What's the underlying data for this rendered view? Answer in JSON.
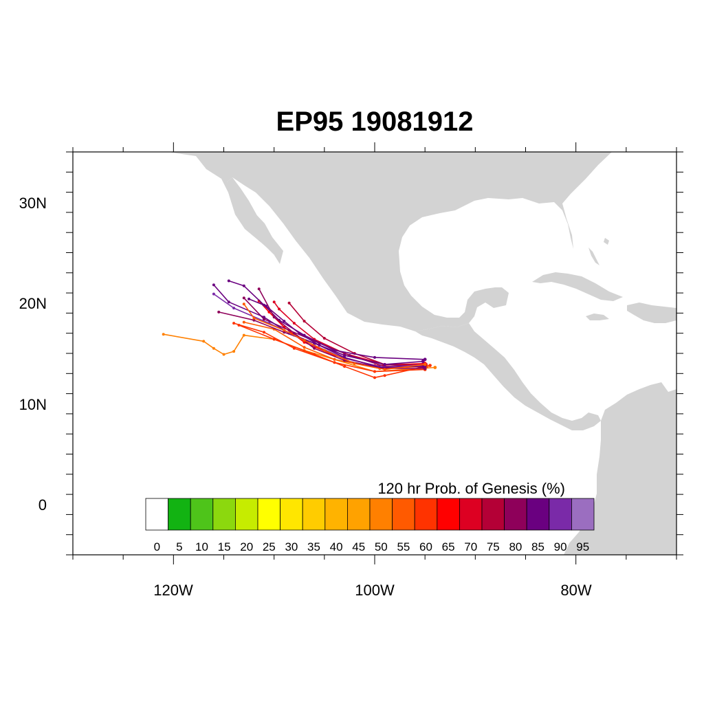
{
  "map": {
    "title": "EP95 19081912",
    "projection": "cylindrical-equidistant",
    "land_color": "#d3d3d3",
    "ocean_color": "#ffffff",
    "lon_range": [
      -130,
      -70
    ],
    "lat_range": [
      -5,
      35
    ],
    "lon_ticks": [
      {
        "value": -120,
        "label": "120W"
      },
      {
        "value": -100,
        "label": "100W"
      },
      {
        "value": -80,
        "label": "80W"
      }
    ],
    "lat_ticks": [
      {
        "value": 30,
        "label": "30N"
      },
      {
        "value": 20,
        "label": "20N"
      },
      {
        "value": 10,
        "label": "10N"
      },
      {
        "value": 0,
        "label": "0"
      }
    ]
  },
  "colorbar": {
    "title": "120 hr Prob. of Genesis (%)",
    "levels": [
      "0",
      "5",
      "10",
      "15",
      "20",
      "25",
      "30",
      "35",
      "40",
      "45",
      "50",
      "55",
      "60",
      "65",
      "70",
      "75",
      "80",
      "85",
      "90",
      "95"
    ],
    "colors": [
      "#ffffff",
      "#12b312",
      "#4ec41a",
      "#8cd80e",
      "#c6ec00",
      "#ffff00",
      "#ffe600",
      "#ffcc00",
      "#ffb300",
      "#ffa200",
      "#ff8000",
      "#ff5a00",
      "#ff3300",
      "#ff0000",
      "#dd0022",
      "#b40036",
      "#8e005a",
      "#6a0080",
      "#7a2aa8",
      "#9b6ec0"
    ]
  },
  "tracks": [
    {
      "color": "#ff8000",
      "points": [
        [
          -94,
          13.6
        ],
        [
          -100,
          13.2
        ],
        [
          -104,
          14.4
        ],
        [
          -107,
          15.3
        ],
        [
          -110,
          16.4
        ],
        [
          -113,
          16.8
        ],
        [
          -114,
          15.2
        ],
        [
          -115,
          14.9
        ],
        [
          -116,
          15.5
        ],
        [
          -117,
          16.2
        ],
        [
          -121,
          16.9
        ]
      ]
    },
    {
      "color": "#ff3300",
      "points": [
        [
          -94.5,
          13.8
        ],
        [
          -99,
          12.8
        ],
        [
          -100,
          12.6
        ],
        [
          -103,
          13.7
        ],
        [
          -106,
          14.9
        ],
        [
          -110,
          16.4
        ],
        [
          -113.5,
          17.8
        ]
      ]
    },
    {
      "color": "#ff3300",
      "points": [
        [
          -95,
          13.4
        ],
        [
          -100,
          13.2
        ],
        [
          -104,
          14.1
        ],
        [
          -108,
          15.5
        ],
        [
          -111,
          17.1
        ],
        [
          -114,
          18.0
        ]
      ]
    },
    {
      "color": "#ff5a00",
      "points": [
        [
          -94.8,
          13.7
        ],
        [
          -99.5,
          13.5
        ],
        [
          -104,
          14.4
        ],
        [
          -107,
          15.6
        ],
        [
          -110,
          17.4
        ],
        [
          -113,
          18.1
        ]
      ]
    },
    {
      "color": "#ff0000",
      "points": [
        [
          -95,
          14.0
        ],
        [
          -100,
          13.8
        ],
        [
          -104,
          14.8
        ],
        [
          -107,
          16.1
        ],
        [
          -109,
          17.6
        ],
        [
          -110.5,
          19.1
        ],
        [
          -111.5,
          20.2
        ]
      ]
    },
    {
      "color": "#dd0022",
      "points": [
        [
          -94.9,
          13.9
        ],
        [
          -99,
          13.9
        ],
        [
          -103,
          15.0
        ],
        [
          -106,
          16.4
        ],
        [
          -108,
          18.0
        ],
        [
          -109.5,
          19.4
        ],
        [
          -110,
          20.1
        ]
      ]
    },
    {
      "color": "#b40036",
      "points": [
        [
          -95,
          13.8
        ],
        [
          -99,
          13.9
        ],
        [
          -102,
          15.0
        ],
        [
          -105,
          16.5
        ],
        [
          -107,
          18.2
        ],
        [
          -108.5,
          20.0
        ]
      ]
    },
    {
      "color": "#8e005a",
      "points": [
        [
          -95.1,
          13.6
        ],
        [
          -99,
          13.9
        ],
        [
          -103,
          14.8
        ],
        [
          -106,
          16.0
        ],
        [
          -109,
          17.1
        ],
        [
          -112,
          18.3
        ],
        [
          -115.5,
          19.1
        ]
      ]
    },
    {
      "color": "#8e005a",
      "points": [
        [
          -95,
          13.7
        ],
        [
          -99,
          13.7
        ],
        [
          -102.5,
          14.8
        ],
        [
          -105.5,
          16.0
        ],
        [
          -108.5,
          17.3
        ],
        [
          -111,
          18.4
        ],
        [
          -113,
          20.5
        ]
      ]
    },
    {
      "color": "#6a0080",
      "points": [
        [
          -95,
          14.4
        ],
        [
          -100,
          14.6
        ],
        [
          -104,
          15.3
        ],
        [
          -107,
          16.8
        ],
        [
          -109.5,
          18.3
        ],
        [
          -111,
          19.8
        ],
        [
          -113,
          21.7
        ],
        [
          -114.5,
          22.2
        ]
      ]
    },
    {
      "color": "#6a0080",
      "points": [
        [
          -95.2,
          14.2
        ],
        [
          -99,
          13.9
        ],
        [
          -103,
          14.8
        ],
        [
          -106,
          16.0
        ],
        [
          -108.5,
          17.0
        ],
        [
          -111,
          18.6
        ],
        [
          -114.5,
          20.1
        ],
        [
          -116,
          21.8
        ]
      ]
    },
    {
      "color": "#7a2aa8",
      "points": [
        [
          -95,
          13.9
        ],
        [
          -99,
          13.6
        ],
        [
          -103,
          14.5
        ],
        [
          -106,
          15.8
        ],
        [
          -108,
          16.8
        ],
        [
          -110.5,
          18.0
        ],
        [
          -114,
          19.5
        ],
        [
          -116,
          20.9
        ]
      ]
    },
    {
      "color": "#8e005a",
      "points": [
        [
          -95,
          13.5
        ],
        [
          -99,
          13.5
        ],
        [
          -103,
          14.3
        ],
        [
          -106,
          15.5
        ],
        [
          -108,
          17.0
        ],
        [
          -110,
          18.6
        ],
        [
          -111.5,
          21.4
        ]
      ]
    },
    {
      "color": "#6a0080",
      "points": [
        [
          -95.1,
          13.7
        ],
        [
          -99.5,
          13.6
        ],
        [
          -103,
          14.6
        ],
        [
          -105.5,
          15.8
        ],
        [
          -107.5,
          17.0
        ],
        [
          -109,
          18.2
        ],
        [
          -110.8,
          19.7
        ],
        [
          -112.5,
          20.4
        ]
      ]
    },
    {
      "color": "#ff5a00",
      "points": [
        [
          -95,
          13.9
        ],
        [
          -99,
          13.4
        ],
        [
          -102,
          14.0
        ],
        [
          -105,
          15.3
        ],
        [
          -107,
          16.3
        ],
        [
          -109,
          17.3
        ],
        [
          -112,
          18.5
        ],
        [
          -113,
          19.9
        ]
      ]
    }
  ]
}
